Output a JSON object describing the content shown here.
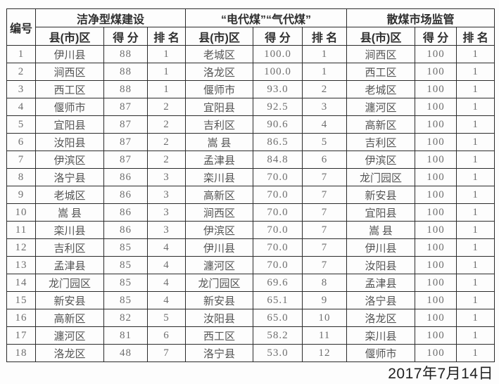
{
  "table": {
    "corner_header": "编号",
    "groups": [
      {
        "key": "clean_coal",
        "title": "洁净型煤建设",
        "columns": [
          "县(市)区",
          "得 分",
          "排 名"
        ]
      },
      {
        "key": "electricity_gas",
        "title": "“电代煤”“气代煤”",
        "columns": [
          "县(市)区",
          "得 分",
          "排 名"
        ]
      },
      {
        "key": "market_supervision",
        "title": "散煤市场监管",
        "columns": [
          "县(市)区",
          "得 分",
          "排 名"
        ]
      }
    ],
    "rows": [
      {
        "no": "1",
        "clean_coal": {
          "county": "伊川县",
          "score": "88",
          "rank": "1"
        },
        "electricity_gas": {
          "county": "老城区",
          "score": "100.0",
          "rank": "1"
        },
        "market_supervision": {
          "county": "涧西区",
          "score": "100",
          "rank": "1"
        }
      },
      {
        "no": "2",
        "clean_coal": {
          "county": "涧西区",
          "score": "88",
          "rank": "1"
        },
        "electricity_gas": {
          "county": "洛龙区",
          "score": "100.0",
          "rank": "1"
        },
        "market_supervision": {
          "county": "西工区",
          "score": "100",
          "rank": "1"
        }
      },
      {
        "no": "3",
        "clean_coal": {
          "county": "西工区",
          "score": "88",
          "rank": "1"
        },
        "electricity_gas": {
          "county": "偃师市",
          "score": "93.0",
          "rank": "2"
        },
        "market_supervision": {
          "county": "老城区",
          "score": "100",
          "rank": "1"
        }
      },
      {
        "no": "4",
        "clean_coal": {
          "county": "偃师市",
          "score": "87",
          "rank": "2"
        },
        "electricity_gas": {
          "county": "宜阳县",
          "score": "92.5",
          "rank": "3"
        },
        "market_supervision": {
          "county": "瀍河区",
          "score": "100",
          "rank": "1"
        }
      },
      {
        "no": "5",
        "clean_coal": {
          "county": "宜阳县",
          "score": "87",
          "rank": "2"
        },
        "electricity_gas": {
          "county": "吉利区",
          "score": "90.6",
          "rank": "4"
        },
        "market_supervision": {
          "county": "高新区",
          "score": "100",
          "rank": "1"
        }
      },
      {
        "no": "6",
        "clean_coal": {
          "county": "汝阳县",
          "score": "87",
          "rank": "2"
        },
        "electricity_gas": {
          "county": "嵩 县",
          "score": "86.5",
          "rank": "5"
        },
        "market_supervision": {
          "county": "吉利区",
          "score": "100",
          "rank": "1"
        }
      },
      {
        "no": "7",
        "clean_coal": {
          "county": "伊滨区",
          "score": "87",
          "rank": "2"
        },
        "electricity_gas": {
          "county": "孟津县",
          "score": "84.8",
          "rank": "6"
        },
        "market_supervision": {
          "county": "伊滨区",
          "score": "100",
          "rank": "1"
        }
      },
      {
        "no": "8",
        "clean_coal": {
          "county": "洛宁县",
          "score": "86",
          "rank": "3"
        },
        "electricity_gas": {
          "county": "栾川县",
          "score": "70.0",
          "rank": "7"
        },
        "market_supervision": {
          "county": "龙门园区",
          "score": "100",
          "rank": "1"
        }
      },
      {
        "no": "9",
        "clean_coal": {
          "county": "老城区",
          "score": "86",
          "rank": "3"
        },
        "electricity_gas": {
          "county": "高新区",
          "score": "70.0",
          "rank": "7"
        },
        "market_supervision": {
          "county": "新安县",
          "score": "100",
          "rank": "1"
        }
      },
      {
        "no": "10",
        "clean_coal": {
          "county": "嵩 县",
          "score": "86",
          "rank": "3"
        },
        "electricity_gas": {
          "county": "涧西区",
          "score": "70.0",
          "rank": "7"
        },
        "market_supervision": {
          "county": "宜阳县",
          "score": "100",
          "rank": "1"
        }
      },
      {
        "no": "11",
        "clean_coal": {
          "county": "栾川县",
          "score": "86",
          "rank": "3"
        },
        "electricity_gas": {
          "county": "伊滨区",
          "score": "70.0",
          "rank": "7"
        },
        "market_supervision": {
          "county": "嵩 县",
          "score": "100",
          "rank": "1"
        }
      },
      {
        "no": "12",
        "clean_coal": {
          "county": "吉利区",
          "score": "85",
          "rank": "4"
        },
        "electricity_gas": {
          "county": "伊川县",
          "score": "70.0",
          "rank": "7"
        },
        "market_supervision": {
          "county": "伊川县",
          "score": "100",
          "rank": "1"
        }
      },
      {
        "no": "13",
        "clean_coal": {
          "county": "孟津县",
          "score": "85",
          "rank": "4"
        },
        "electricity_gas": {
          "county": "瀍河区",
          "score": "70.0",
          "rank": "7"
        },
        "market_supervision": {
          "county": "汝阳县",
          "score": "100",
          "rank": "1"
        }
      },
      {
        "no": "14",
        "clean_coal": {
          "county": "龙门园区",
          "score": "85",
          "rank": "4"
        },
        "electricity_gas": {
          "county": "龙门园区",
          "score": "69.6",
          "rank": "8"
        },
        "market_supervision": {
          "county": "孟津县",
          "score": "100",
          "rank": "1"
        }
      },
      {
        "no": "15",
        "clean_coal": {
          "county": "新安县",
          "score": "85",
          "rank": "4"
        },
        "electricity_gas": {
          "county": "新安县",
          "score": "65.1",
          "rank": "9"
        },
        "market_supervision": {
          "county": "洛宁县",
          "score": "100",
          "rank": "1"
        }
      },
      {
        "no": "16",
        "clean_coal": {
          "county": "高新区",
          "score": "82",
          "rank": "5"
        },
        "electricity_gas": {
          "county": "汝阳县",
          "score": "65.0",
          "rank": "10"
        },
        "market_supervision": {
          "county": "洛龙区",
          "score": "100",
          "rank": "1"
        }
      },
      {
        "no": "17",
        "clean_coal": {
          "county": "瀍河区",
          "score": "81",
          "rank": "6"
        },
        "electricity_gas": {
          "county": "西工区",
          "score": "58.2",
          "rank": "11"
        },
        "market_supervision": {
          "county": "栾川县",
          "score": "100",
          "rank": "1"
        }
      },
      {
        "no": "18",
        "clean_coal": {
          "county": "洛龙区",
          "score": "48",
          "rank": "7"
        },
        "electricity_gas": {
          "county": "洛宁县",
          "score": "53.0",
          "rank": "12"
        },
        "market_supervision": {
          "county": "偃师市",
          "score": "100",
          "rank": "1"
        }
      }
    ]
  },
  "footer": {
    "date": "2017年7月14日"
  }
}
